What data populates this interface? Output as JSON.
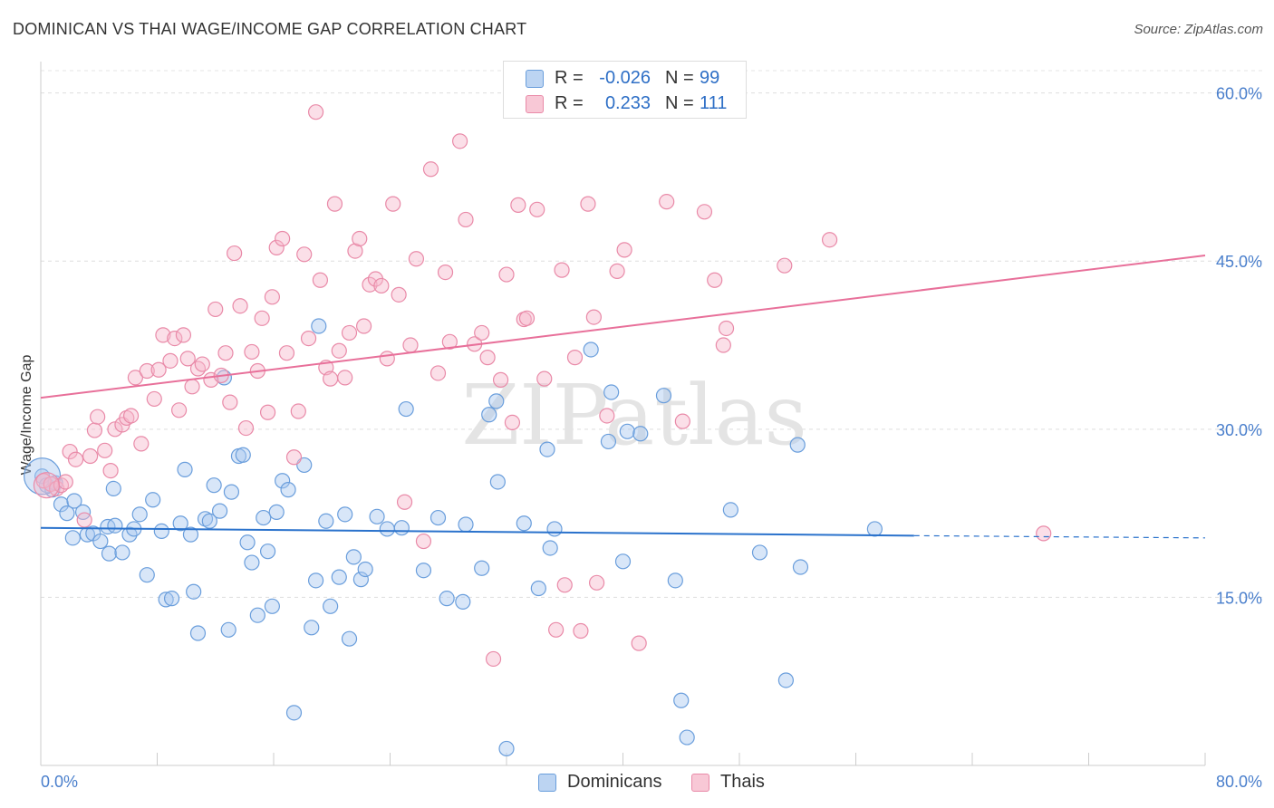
{
  "title": "DOMINICAN VS THAI WAGE/INCOME GAP CORRELATION CHART",
  "source": "Source: ZipAtlas.com",
  "watermark": "ZIPatlas",
  "colors": {
    "dominicans_fill": "#a9c8ef",
    "dominicans_stroke": "#6a9edc",
    "dominicans_line": "#2a72cc",
    "thais_fill": "#f7b9cb",
    "thais_stroke": "#e98aa8",
    "thais_line": "#e8709a",
    "tick_label": "#4a7fcc"
  },
  "legend": {
    "r_label": "R =",
    "n_label": "N =",
    "rows": [
      {
        "r": "-0.026",
        "n": "99"
      },
      {
        "r": "0.233",
        "n": "111"
      }
    ]
  },
  "chart_data": {
    "type": "scatter",
    "title": "DOMINICAN VS THAI WAGE/INCOME GAP CORRELATION CHART",
    "xlabel": "",
    "ylabel": "Wage/Income Gap",
    "xlim": [
      0,
      80
    ],
    "ylim": [
      0,
      62.8
    ],
    "x_tick_labels": [
      "0.0%",
      "80.0%"
    ],
    "y_ticks": [
      15,
      30,
      45,
      60
    ],
    "y_tick_labels": [
      "15.0%",
      "30.0%",
      "45.0%",
      "60.0%"
    ],
    "grid": true,
    "legend_position": "bottom-center",
    "series": [
      {
        "name": "Dominicans",
        "r": -0.026,
        "n": 99,
        "trend": {
          "x0": 0,
          "y0": 21.2,
          "x1": 60,
          "y1": 20.5,
          "dashed_to": 80,
          "dashed_y": 20.3
        },
        "points": [
          [
            0.1,
            25.8
          ],
          [
            0.4,
            25.0
          ],
          [
            0.8,
            24.6
          ],
          [
            1.0,
            25.2
          ],
          [
            1.4,
            23.3
          ],
          [
            1.8,
            22.5
          ],
          [
            2.2,
            20.3
          ],
          [
            2.3,
            23.6
          ],
          [
            2.9,
            22.6
          ],
          [
            3.2,
            20.6
          ],
          [
            3.6,
            20.7
          ],
          [
            4.1,
            20.0
          ],
          [
            4.6,
            21.3
          ],
          [
            4.7,
            18.9
          ],
          [
            5.0,
            24.7
          ],
          [
            5.1,
            21.4
          ],
          [
            5.6,
            19.0
          ],
          [
            6.1,
            20.6
          ],
          [
            6.4,
            21.1
          ],
          [
            6.8,
            22.4
          ],
          [
            7.3,
            17.0
          ],
          [
            7.7,
            23.7
          ],
          [
            8.3,
            20.9
          ],
          [
            8.6,
            14.8
          ],
          [
            9.0,
            14.9
          ],
          [
            9.6,
            21.6
          ],
          [
            9.9,
            26.4
          ],
          [
            10.3,
            20.6
          ],
          [
            10.5,
            15.5
          ],
          [
            10.8,
            11.8
          ],
          [
            11.3,
            22.0
          ],
          [
            11.6,
            21.8
          ],
          [
            11.9,
            25.0
          ],
          [
            12.3,
            22.7
          ],
          [
            12.6,
            34.6
          ],
          [
            12.9,
            12.1
          ],
          [
            13.1,
            24.4
          ],
          [
            13.6,
            27.6
          ],
          [
            13.9,
            27.7
          ],
          [
            14.2,
            19.9
          ],
          [
            14.5,
            18.1
          ],
          [
            14.9,
            13.4
          ],
          [
            15.3,
            22.1
          ],
          [
            15.6,
            19.1
          ],
          [
            15.9,
            14.2
          ],
          [
            16.2,
            22.6
          ],
          [
            16.6,
            25.4
          ],
          [
            17.0,
            24.6
          ],
          [
            17.4,
            4.7
          ],
          [
            18.1,
            26.8
          ],
          [
            18.6,
            12.3
          ],
          [
            18.9,
            16.5
          ],
          [
            19.1,
            39.2
          ],
          [
            19.6,
            21.8
          ],
          [
            19.9,
            14.2
          ],
          [
            20.5,
            16.8
          ],
          [
            20.9,
            22.4
          ],
          [
            21.2,
            11.3
          ],
          [
            21.5,
            18.6
          ],
          [
            22.0,
            16.6
          ],
          [
            22.3,
            17.5
          ],
          [
            23.1,
            22.2
          ],
          [
            23.8,
            21.1
          ],
          [
            24.8,
            21.2
          ],
          [
            25.1,
            31.8
          ],
          [
            26.3,
            17.4
          ],
          [
            27.3,
            22.1
          ],
          [
            27.9,
            14.9
          ],
          [
            29.0,
            14.6
          ],
          [
            29.2,
            21.5
          ],
          [
            30.3,
            17.6
          ],
          [
            30.8,
            31.3
          ],
          [
            31.3,
            32.5
          ],
          [
            31.4,
            25.3
          ],
          [
            32.0,
            1.5
          ],
          [
            33.2,
            21.6
          ],
          [
            34.2,
            15.8
          ],
          [
            34.8,
            28.2
          ],
          [
            35.0,
            19.4
          ],
          [
            35.3,
            21.1
          ],
          [
            37.8,
            37.1
          ],
          [
            39.0,
            28.9
          ],
          [
            39.2,
            33.3
          ],
          [
            40.0,
            18.2
          ],
          [
            40.3,
            29.8
          ],
          [
            41.2,
            29.6
          ],
          [
            42.8,
            33.0
          ],
          [
            43.6,
            16.5
          ],
          [
            44.0,
            5.8
          ],
          [
            44.4,
            2.5
          ],
          [
            47.4,
            22.8
          ],
          [
            49.4,
            19.0
          ],
          [
            51.2,
            7.6
          ],
          [
            52.0,
            28.6
          ],
          [
            52.2,
            17.7
          ],
          [
            57.3,
            21.1
          ]
        ]
      },
      {
        "name": "Thais",
        "r": 0.233,
        "n": 111,
        "trend": {
          "x0": 0,
          "y0": 32.8,
          "x1": 80,
          "y1": 45.5
        },
        "points": [
          [
            0.2,
            25.4
          ],
          [
            0.7,
            25.1
          ],
          [
            1.1,
            24.7
          ],
          [
            1.4,
            25.0
          ],
          [
            1.7,
            25.3
          ],
          [
            2.0,
            28.0
          ],
          [
            2.4,
            27.3
          ],
          [
            3.0,
            21.9
          ],
          [
            3.4,
            27.6
          ],
          [
            3.7,
            29.9
          ],
          [
            3.9,
            31.1
          ],
          [
            4.4,
            28.1
          ],
          [
            4.8,
            26.3
          ],
          [
            5.1,
            30.0
          ],
          [
            5.6,
            30.4
          ],
          [
            5.9,
            31.0
          ],
          [
            6.2,
            31.2
          ],
          [
            6.5,
            34.6
          ],
          [
            6.9,
            28.7
          ],
          [
            7.3,
            35.2
          ],
          [
            7.8,
            32.7
          ],
          [
            8.1,
            35.3
          ],
          [
            8.4,
            38.4
          ],
          [
            8.9,
            36.1
          ],
          [
            9.2,
            38.1
          ],
          [
            9.5,
            31.7
          ],
          [
            9.8,
            38.4
          ],
          [
            10.1,
            36.3
          ],
          [
            10.4,
            33.8
          ],
          [
            10.8,
            35.4
          ],
          [
            11.1,
            35.8
          ],
          [
            11.7,
            34.4
          ],
          [
            12.0,
            40.7
          ],
          [
            12.4,
            34.8
          ],
          [
            12.7,
            36.8
          ],
          [
            13.0,
            32.4
          ],
          [
            13.3,
            45.7
          ],
          [
            13.7,
            41.0
          ],
          [
            14.1,
            30.1
          ],
          [
            14.5,
            36.9
          ],
          [
            14.9,
            35.2
          ],
          [
            15.2,
            39.9
          ],
          [
            15.6,
            31.5
          ],
          [
            15.9,
            41.8
          ],
          [
            16.2,
            46.2
          ],
          [
            16.6,
            47.0
          ],
          [
            16.9,
            36.8
          ],
          [
            17.4,
            27.5
          ],
          [
            17.7,
            31.6
          ],
          [
            18.1,
            45.6
          ],
          [
            18.4,
            38.1
          ],
          [
            18.9,
            58.3
          ],
          [
            19.2,
            43.3
          ],
          [
            19.6,
            35.5
          ],
          [
            19.9,
            34.5
          ],
          [
            20.2,
            50.1
          ],
          [
            20.5,
            37.0
          ],
          [
            20.9,
            34.6
          ],
          [
            21.2,
            38.6
          ],
          [
            21.6,
            45.9
          ],
          [
            21.9,
            47.0
          ],
          [
            22.2,
            39.2
          ],
          [
            22.6,
            42.9
          ],
          [
            23.0,
            43.4
          ],
          [
            23.4,
            42.8
          ],
          [
            23.8,
            36.3
          ],
          [
            24.2,
            50.1
          ],
          [
            24.6,
            42.0
          ],
          [
            25.0,
            23.5
          ],
          [
            25.4,
            37.5
          ],
          [
            25.8,
            45.2
          ],
          [
            26.3,
            20.0
          ],
          [
            26.8,
            53.2
          ],
          [
            27.3,
            35.0
          ],
          [
            27.8,
            44.0
          ],
          [
            28.1,
            37.8
          ],
          [
            28.8,
            55.7
          ],
          [
            29.2,
            48.7
          ],
          [
            29.8,
            37.6
          ],
          [
            30.3,
            38.6
          ],
          [
            30.7,
            36.4
          ],
          [
            31.1,
            9.5
          ],
          [
            31.6,
            34.4
          ],
          [
            32.0,
            43.8
          ],
          [
            32.4,
            30.6
          ],
          [
            32.8,
            50.0
          ],
          [
            33.2,
            39.8
          ],
          [
            33.4,
            39.9
          ],
          [
            34.1,
            49.6
          ],
          [
            34.6,
            34.5
          ],
          [
            35.4,
            12.1
          ],
          [
            35.8,
            44.2
          ],
          [
            36.0,
            16.1
          ],
          [
            36.7,
            36.4
          ],
          [
            37.1,
            12.0
          ],
          [
            37.6,
            50.1
          ],
          [
            38.0,
            40.0
          ],
          [
            38.2,
            16.3
          ],
          [
            38.9,
            31.2
          ],
          [
            39.6,
            44.1
          ],
          [
            40.1,
            46.0
          ],
          [
            41.1,
            10.9
          ],
          [
            43.0,
            50.3
          ],
          [
            44.1,
            30.7
          ],
          [
            45.6,
            49.4
          ],
          [
            46.3,
            43.3
          ],
          [
            46.9,
            37.5
          ],
          [
            47.1,
            39.0
          ],
          [
            51.1,
            44.6
          ],
          [
            54.2,
            46.9
          ],
          [
            68.9,
            20.7
          ]
        ]
      }
    ]
  }
}
